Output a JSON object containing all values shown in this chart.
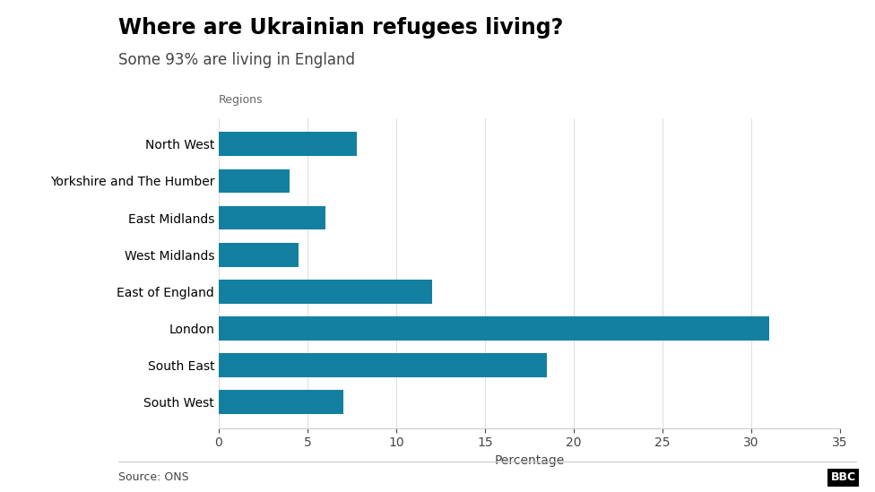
{
  "title": "Where are Ukrainian refugees living?",
  "subtitle": "Some 93% are living in England",
  "y_axis_label": "Regions",
  "x_axis_label": "Percentage",
  "source": "Source: ONS",
  "categories": [
    "North West",
    "Yorkshire and The Humber",
    "East Midlands",
    "West Midlands",
    "East of England",
    "London",
    "South East",
    "South West"
  ],
  "values": [
    7.8,
    4.0,
    6.0,
    4.5,
    12.0,
    31.0,
    18.5,
    7.0
  ],
  "bar_color": "#1380A1",
  "background_color": "#ffffff",
  "xlim": [
    0,
    35
  ],
  "xticks": [
    0,
    5,
    10,
    15,
    20,
    25,
    30,
    35
  ],
  "title_fontsize": 17,
  "subtitle_fontsize": 12,
  "tick_fontsize": 10,
  "label_fontsize": 10,
  "source_fontsize": 9,
  "regions_fontsize": 9,
  "bbc_text": "BBC",
  "bbc_fontsize": 9
}
